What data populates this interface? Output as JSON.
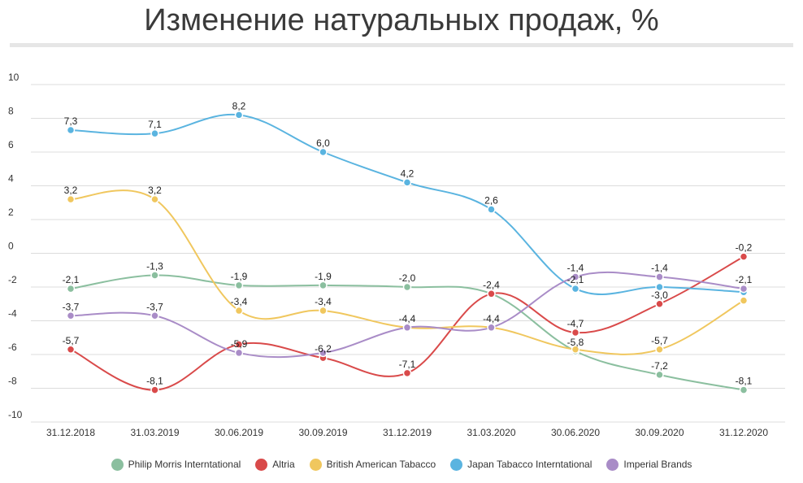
{
  "chart_data": {
    "type": "line",
    "title": "Изменение натуральных продаж, %",
    "xlabel": "",
    "ylabel": "",
    "categories": [
      "31.12.2018",
      "31.03.2019",
      "30.06.2019",
      "30.09.2019",
      "31.12.2019",
      "31.03.2020",
      "30.06.2020",
      "30.09.2020",
      "31.12.2020"
    ],
    "ylim": [
      -10,
      10
    ],
    "yticks": [
      10,
      8,
      6,
      4,
      2,
      0,
      -2,
      -4,
      -6,
      -8,
      -10
    ],
    "grid": true,
    "legend_position": "bottom",
    "series": [
      {
        "name": "Philip Morris Interntational",
        "color": "#8bbf9f",
        "values": [
          -2.1,
          -1.3,
          -1.9,
          -1.9,
          -2.0,
          -2.4,
          -5.8,
          -7.2,
          -8.1
        ],
        "labels": [
          "-2,1",
          "-1,3",
          "-1,9",
          "-1,9",
          "-2,0",
          "",
          "-5,8",
          "-7,2",
          "-8,1"
        ]
      },
      {
        "name": "Altria",
        "color": "#d94a4a",
        "values": [
          -5.7,
          -8.1,
          -5.4,
          -6.2,
          -7.1,
          -2.4,
          -4.7,
          -3.0,
          -0.2
        ],
        "labels": [
          "-5,7",
          "-8,1",
          "",
          "-6,2",
          "-7,1",
          "-2,4",
          "-4,7",
          "-3,0",
          "-0,2"
        ]
      },
      {
        "name": "British American Tabacco",
        "color": "#f0c75e",
        "values": [
          3.2,
          3.2,
          -3.4,
          -3.4,
          -4.4,
          -4.4,
          -5.7,
          -5.7,
          -2.8
        ],
        "labels": [
          "3,2",
          "3,2",
          "-3,4",
          "-3,4",
          "",
          "",
          "",
          "-5,7",
          ""
        ]
      },
      {
        "name": "Japan Tabacco Interntational",
        "color": "#5ab4e0",
        "values": [
          7.3,
          7.1,
          8.2,
          6.0,
          4.2,
          2.6,
          -2.1,
          -2.0,
          -2.3
        ],
        "labels": [
          "7,3",
          "7,1",
          "8,2",
          "6,0",
          "4,2",
          "2,6",
          "-2,1",
          "",
          ""
        ]
      },
      {
        "name": "Imperial Brands",
        "color": "#a98cc7",
        "values": [
          -3.7,
          -3.7,
          -5.9,
          -5.9,
          -4.4,
          -4.4,
          -1.4,
          -1.4,
          -2.1
        ],
        "labels": [
          "-3,7",
          "-3,7",
          "-5,9",
          "",
          "-4,4",
          "-4,4",
          "-1,4",
          "-1,4",
          "-2,1"
        ]
      }
    ]
  }
}
